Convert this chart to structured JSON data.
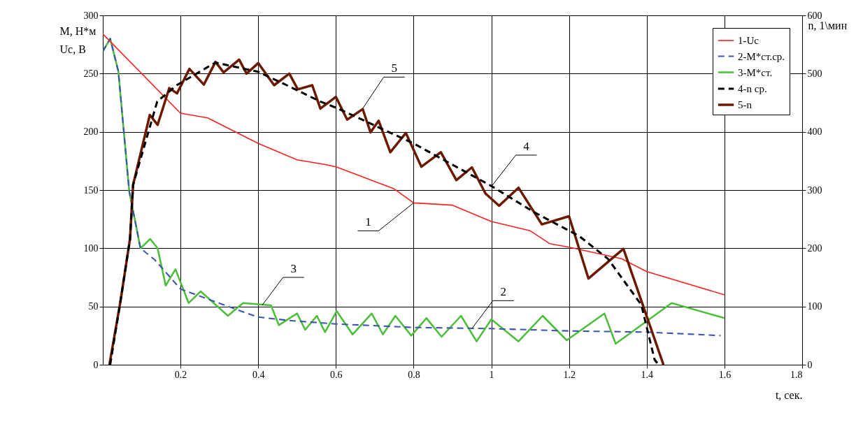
{
  "chart_data": {
    "type": "line",
    "xlabel": "t, сек.",
    "ylabel": "M, Н*м\nUc, В",
    "y2label": "n, 1\\мин",
    "xlim": [
      0,
      1.8
    ],
    "xticks": [
      0.2,
      0.4,
      0.6,
      0.8,
      {
        "value": 1,
        "label": "1"
      },
      1.2,
      1.4,
      1.6,
      1.8
    ],
    "ylim": [
      0,
      300
    ],
    "yticks": [
      0,
      50,
      100,
      150,
      200,
      250,
      300
    ],
    "y2lim": [
      0,
      600
    ],
    "y2ticks": [
      0,
      100,
      200,
      300,
      400,
      500,
      600
    ],
    "grid": true,
    "legend": "top right",
    "series": [
      {
        "name": "1-Uc",
        "color": "#ff2020",
        "line_style": "solid",
        "x": [
          0,
          0.2,
          0.27,
          0.4,
          0.5,
          0.57,
          0.6,
          0.75,
          0.8,
          0.9,
          1.0,
          1.1,
          1.15,
          1.2,
          1.335,
          1.4,
          1.6
        ],
        "values": [
          284,
          216,
          212,
          190,
          176,
          172,
          170,
          151,
          139,
          137,
          123,
          115,
          104,
          101,
          91,
          80,
          60
        ]
      },
      {
        "name": "2-M*ст.ср.",
        "color": "#3b55b0",
        "line_style": "dashed",
        "x": [
          0,
          0.019,
          0.04,
          0.068,
          0.097,
          0.134,
          0.2,
          0.306,
          0.398,
          0.478,
          0.6,
          0.8,
          1.0,
          1.2,
          1.4,
          1.59
        ],
        "values": [
          269,
          280,
          252,
          149,
          100,
          90,
          65,
          52,
          41,
          38,
          35,
          32,
          31,
          29,
          28,
          25
        ]
      },
      {
        "name": "3-M*ст.",
        "color": "#4cbf3a",
        "line_style": "solid",
        "x": [
          0,
          0.019,
          0.04,
          0.068,
          0.097,
          0.122,
          0.141,
          0.162,
          0.187,
          0.221,
          0.252,
          0.322,
          0.361,
          0.433,
          0.453,
          0.5,
          0.521,
          0.551,
          0.572,
          0.602,
          0.643,
          0.692,
          0.721,
          0.753,
          0.794,
          0.833,
          0.872,
          0.922,
          0.962,
          1.0,
          1.07,
          1.132,
          1.194,
          1.291,
          1.32,
          1.464,
          1.6
        ],
        "values": [
          269,
          280,
          252,
          149,
          100,
          108,
          100,
          68,
          82,
          53,
          63,
          42,
          53,
          51,
          34,
          44,
          30,
          42,
          28,
          46,
          26,
          44,
          26,
          42,
          25,
          40,
          24,
          42,
          20,
          39,
          20,
          42,
          21,
          44,
          18,
          53,
          40
        ]
      },
      {
        "name": "4-n ср.",
        "color": "#000000",
        "line_style": "dashed",
        "axis": "y2",
        "x": [
          0.019,
          0.045,
          0.07,
          0.078,
          0.117,
          0.14,
          0.19,
          0.29,
          0.4,
          0.48,
          0.56,
          0.605,
          0.8,
          1.0,
          1.11,
          1.226,
          1.3,
          1.386,
          1.42,
          1.43
        ],
        "values": [
          0,
          107,
          216,
          309,
          399,
          452,
          480,
          519,
          503,
          478,
          452,
          440,
          380,
          307,
          262,
          221,
          182,
          103,
          9,
          0
        ]
      },
      {
        "name": "5-n",
        "color": "#6b1a00",
        "line_style": "solid",
        "axis": "y2",
        "x": [
          0.017,
          0.045,
          0.07,
          0.078,
          0.121,
          0.141,
          0.171,
          0.191,
          0.223,
          0.26,
          0.29,
          0.311,
          0.351,
          0.37,
          0.4,
          0.441,
          0.48,
          0.502,
          0.539,
          0.56,
          0.6,
          0.629,
          0.669,
          0.689,
          0.71,
          0.74,
          0.78,
          0.82,
          0.87,
          0.91,
          0.95,
          0.985,
          1.02,
          1.07,
          1.13,
          1.2,
          1.25,
          1.34,
          1.443
        ],
        "values": [
          0,
          107,
          216,
          309,
          429,
          412,
          475,
          466,
          508,
          481,
          520,
          502,
          524,
          500,
          518,
          480,
          500,
          473,
          480,
          440,
          460,
          421,
          439,
          399,
          419,
          365,
          398,
          340,
          365,
          317,
          339,
          294,
          273,
          304,
          241,
          255,
          148,
          199,
          0
        ]
      }
    ],
    "annotations": [
      {
        "text": "1",
        "x": 0.8,
        "y": 139
      },
      {
        "text": "2",
        "x": 0.95,
        "y": 31
      },
      {
        "text": "3",
        "x": 0.41,
        "y": 51
      },
      {
        "text": "4",
        "x": 1.0,
        "y": 153
      },
      {
        "text": "5",
        "x": 0.669,
        "y": 220
      }
    ]
  }
}
